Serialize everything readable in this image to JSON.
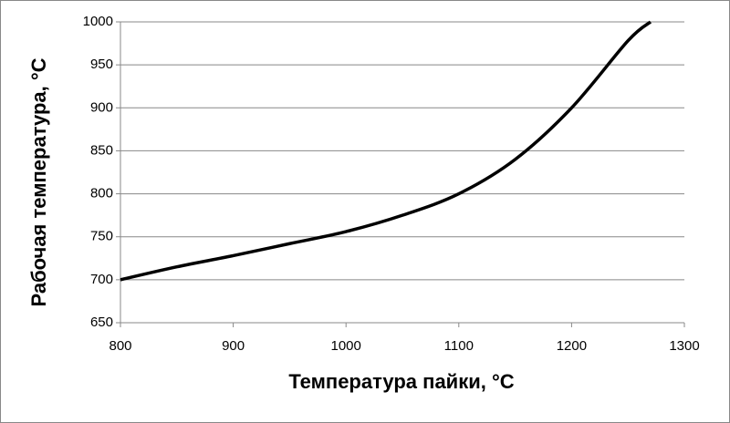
{
  "chart_data": {
    "type": "line",
    "x_label": "Температура пайки, °С",
    "y_label": "Рабочая температура, °С",
    "x": [
      800,
      850,
      900,
      950,
      1000,
      1050,
      1100,
      1150,
      1200,
      1250,
      1270
    ],
    "series": [
      {
        "color": "#000000",
        "values": [
          700,
          715,
          728,
          742,
          756,
          775,
          800,
          840,
          900,
          978,
          1000
        ]
      }
    ],
    "xlim": [
      800,
      1300
    ],
    "xticks": [
      800,
      900,
      1000,
      1100,
      1200,
      1300
    ],
    "ylim": [
      650,
      1000
    ],
    "yticks": [
      650,
      700,
      750,
      800,
      850,
      900,
      950,
      1000
    ],
    "grid": true
  }
}
